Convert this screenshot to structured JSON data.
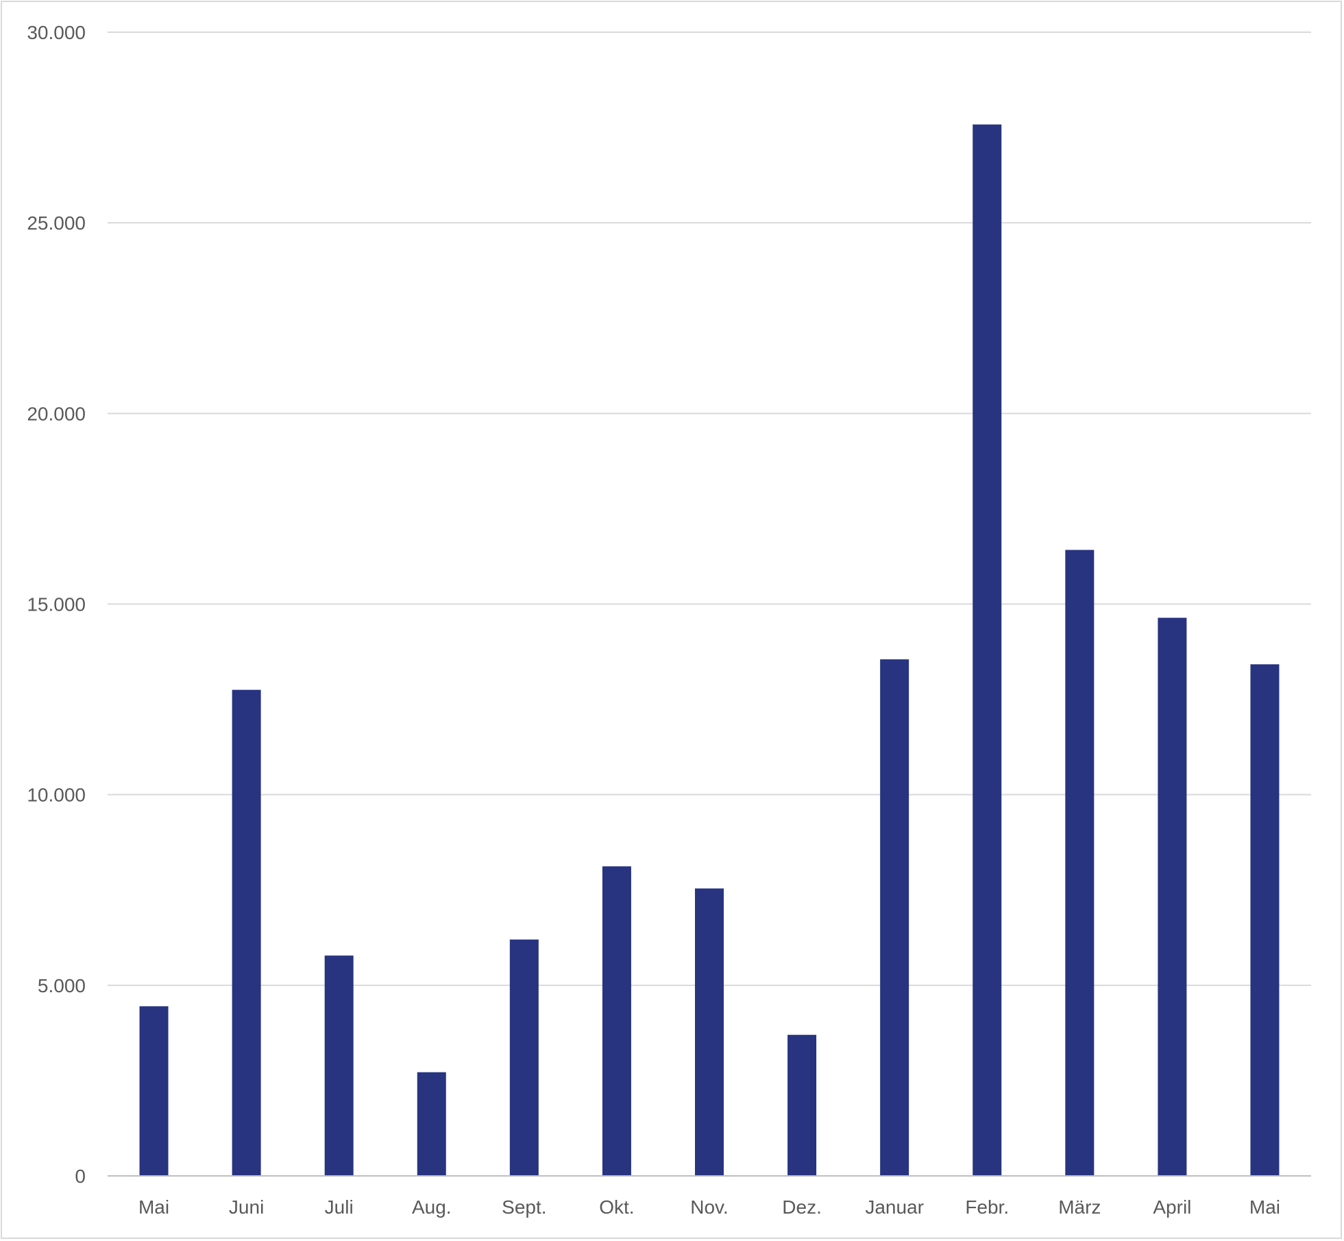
{
  "chart_data": {
    "type": "bar",
    "title": "",
    "xlabel": "",
    "ylabel": "",
    "categories": [
      "Mai",
      "Juni",
      "Juli",
      "Aug.",
      "Sept.",
      "Okt.",
      "Nov.",
      "Dez.",
      "Januar",
      "Febr.",
      "März",
      "April",
      "Mai"
    ],
    "values": [
      4450,
      12750,
      5780,
      2720,
      6200,
      8120,
      7540,
      3700,
      13550,
      27580,
      16420,
      14640,
      13420
    ],
    "ylim": [
      0,
      30000
    ],
    "yticks": [
      0,
      5000,
      10000,
      15000,
      20000,
      25000,
      30000
    ],
    "ytick_labels": [
      "0",
      "5.000",
      "10.000",
      "15.000",
      "20.000",
      "25.000",
      "30.000"
    ],
    "grid": true,
    "legend": "none",
    "bar_color": "#283480"
  }
}
